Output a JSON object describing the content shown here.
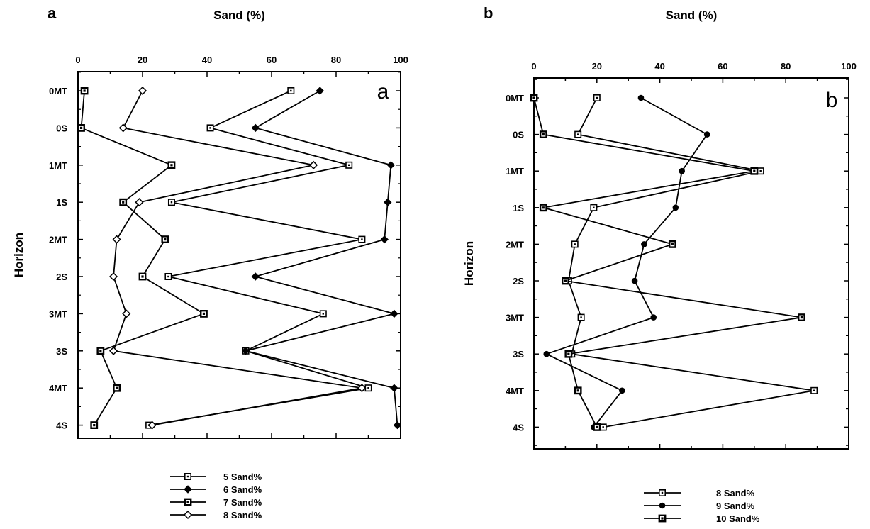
{
  "chart_data": [
    {
      "type": "line",
      "panel_label": "a",
      "corner_label": "a",
      "xlabel": "Sand  (%)",
      "ylabel": "Horizon",
      "xlim": [
        0,
        100
      ],
      "xticks": [
        "0",
        "20",
        "40",
        "60",
        "80",
        "100"
      ],
      "categories": [
        "0MT",
        "0S",
        "1MT",
        "1S",
        "2MT",
        "2S",
        "3MT",
        "3S",
        "4MT",
        "4S"
      ],
      "grid": false,
      "legend_position": "bottom",
      "series": [
        {
          "name": "5 Sand%",
          "marker": "open-square",
          "values": [
            66,
            41,
            84,
            29,
            88,
            28,
            76,
            52,
            90,
            22
          ]
        },
        {
          "name": "6 Sand%",
          "marker": "filled-diamond",
          "values": [
            75,
            55,
            97,
            96,
            95,
            55,
            98,
            52,
            98,
            99
          ]
        },
        {
          "name": "7 Sand%",
          "marker": "square",
          "values": [
            2,
            1,
            29,
            14,
            27,
            20,
            39,
            7,
            12,
            5
          ]
        },
        {
          "name": "8 Sand%",
          "marker": "open-diamond",
          "values": [
            20,
            14,
            73,
            19,
            12,
            11,
            15,
            11,
            88,
            23
          ]
        }
      ]
    },
    {
      "type": "line",
      "panel_label": "b",
      "corner_label": "b",
      "xlabel": "Sand  (%)",
      "ylabel": "Horizon",
      "xlim": [
        0,
        100
      ],
      "xticks": [
        "0",
        "20",
        "40",
        "60",
        "80",
        "100"
      ],
      "categories": [
        "0MT",
        "0S",
        "1MT",
        "1S",
        "2MT",
        "2S",
        "3MT",
        "3S",
        "4MT",
        "4S"
      ],
      "grid": false,
      "legend_position": "bottom",
      "series": [
        {
          "name": "8 Sand%",
          "marker": "open-square",
          "values": [
            20,
            14,
            72,
            19,
            13,
            11,
            15,
            12,
            89,
            22
          ]
        },
        {
          "name": "9 Sand%",
          "marker": "filled-circle",
          "values": [
            34,
            55,
            47,
            45,
            35,
            32,
            38,
            4,
            28,
            19
          ]
        },
        {
          "name": "10 Sand%",
          "marker": "square",
          "values": [
            0,
            3,
            70,
            3,
            44,
            10,
            85,
            11,
            14,
            20
          ]
        }
      ]
    }
  ]
}
